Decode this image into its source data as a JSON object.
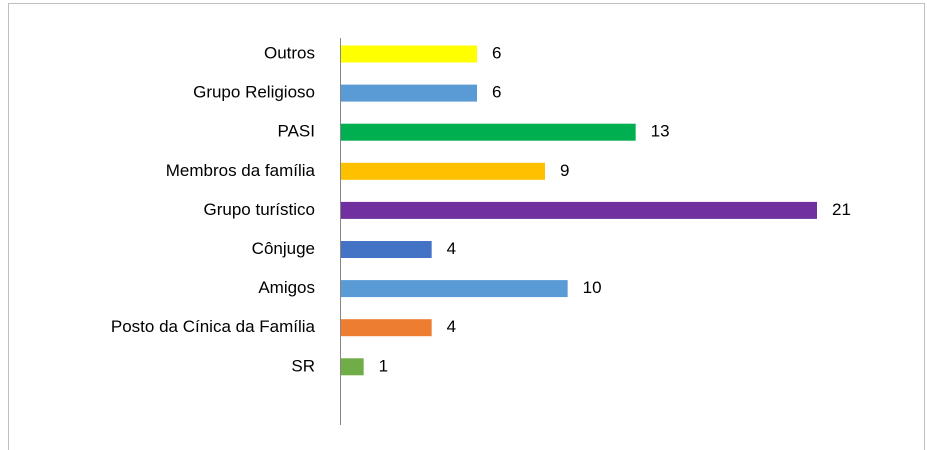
{
  "chart_data": {
    "type": "barh",
    "categories": [
      "Outros",
      "Grupo Religioso",
      "PASI",
      "Membros da família",
      "Grupo turístico",
      "Cônjuge",
      "Amigos",
      "Posto da Cínica da Família",
      "SR"
    ],
    "values": [
      6,
      6,
      13,
      9,
      21,
      4,
      10,
      4,
      1
    ],
    "colors": [
      "#ffff00",
      "#5b9bd5",
      "#00b050",
      "#ffc000",
      "#7030a0",
      "#4472c4",
      "#5b9bd5",
      "#ed7d31",
      "#70ad47"
    ]
  }
}
